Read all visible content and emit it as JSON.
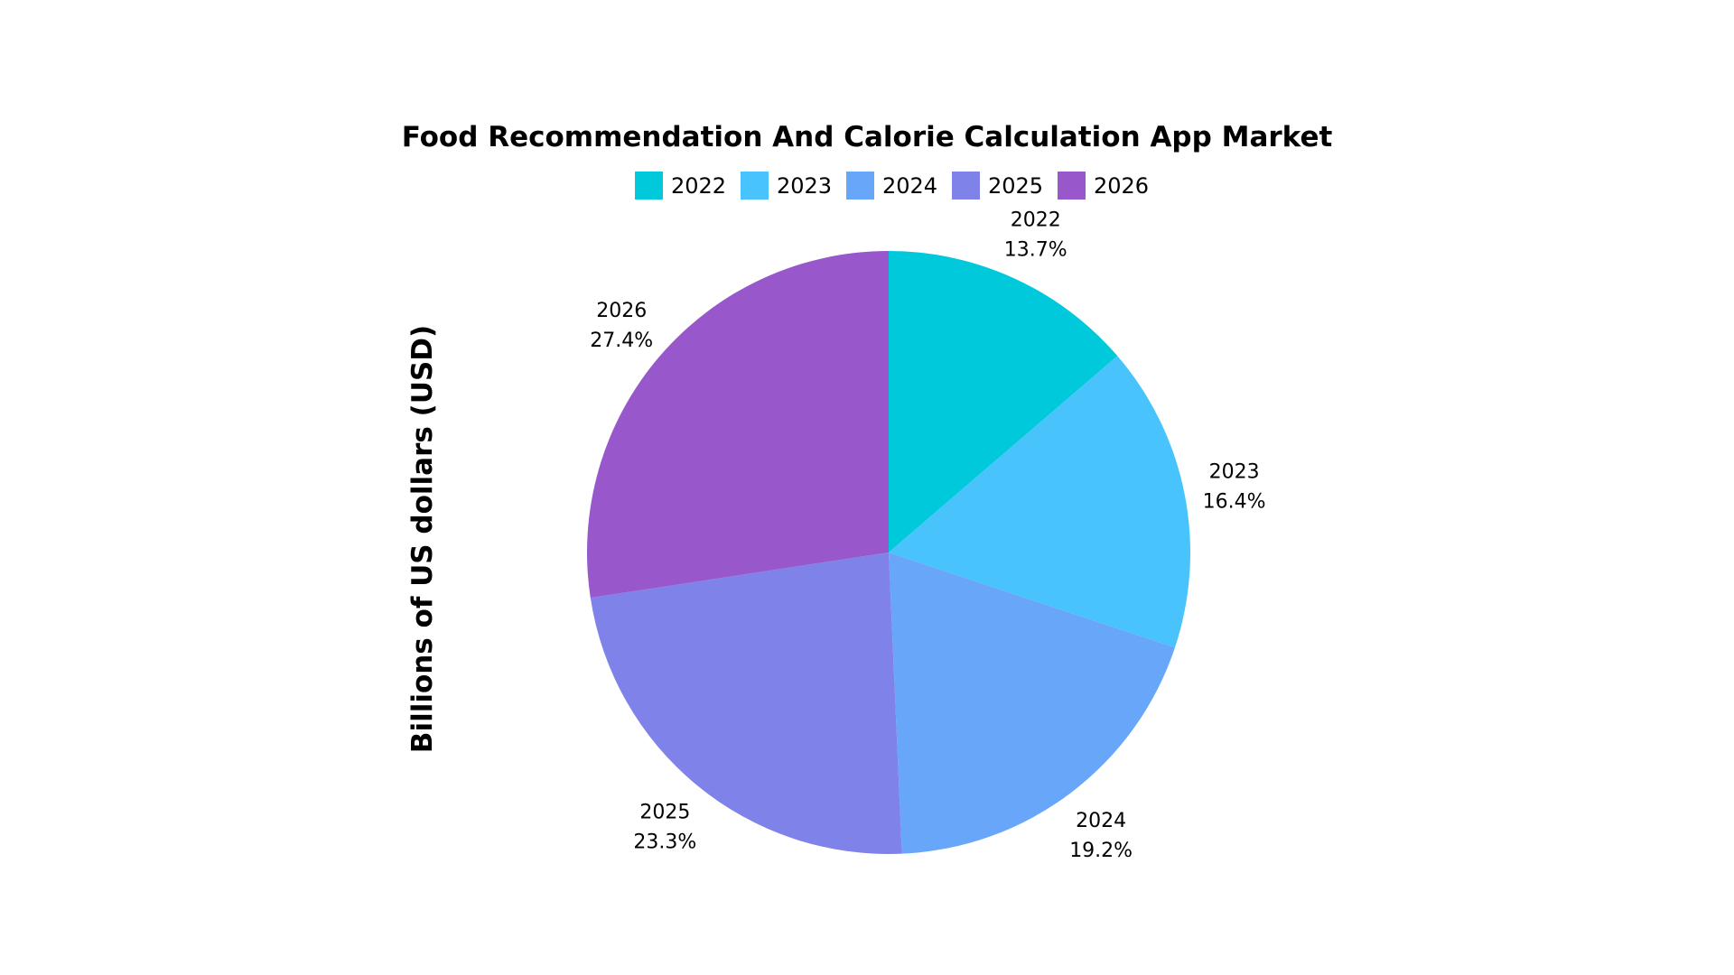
{
  "chart_data": {
    "type": "pie",
    "title": "Food Recommendation And Calorie Calculation App Market",
    "ylabel": "Billions of US dollars (USD)",
    "legend_position": "top",
    "categories": [
      "2022",
      "2023",
      "2024",
      "2025",
      "2026"
    ],
    "values": [
      13.7,
      16.4,
      19.2,
      23.3,
      27.4
    ],
    "value_labels": [
      "13.7%",
      "16.4%",
      "19.2%",
      "23.3%",
      "27.4%"
    ],
    "colors": [
      "#00c9db",
      "#48c3fc",
      "#68a6f9",
      "#7e82e9",
      "#9858cc"
    ],
    "start_angle": "12 o'clock",
    "direction": "clockwise"
  }
}
